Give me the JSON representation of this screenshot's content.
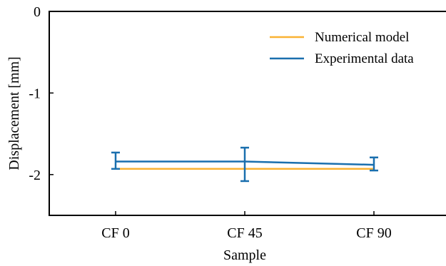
{
  "chart_data": {
    "type": "line",
    "title": "",
    "xlabel": "Sample",
    "ylabel": "Displacement [mm]",
    "categories": [
      "CF 0",
      "CF 45",
      "CF 90"
    ],
    "ylim": [
      -2.5,
      0
    ],
    "yticks": [
      0,
      -1,
      -2
    ],
    "ytick_labels": [
      "0",
      "-1",
      "-2"
    ],
    "grid": false,
    "legend_position": "top-right",
    "series": [
      {
        "name": "Numerical model",
        "color": "#f9b233",
        "values": [
          -1.93,
          -1.93,
          -1.93
        ]
      },
      {
        "name": "Experimental data",
        "color": "#1a6fae",
        "values": [
          -1.84,
          -1.84,
          -1.88
        ],
        "error_low": [
          -1.93,
          -2.08,
          -1.95
        ],
        "error_high": [
          -1.73,
          -1.67,
          -1.79
        ]
      }
    ]
  }
}
